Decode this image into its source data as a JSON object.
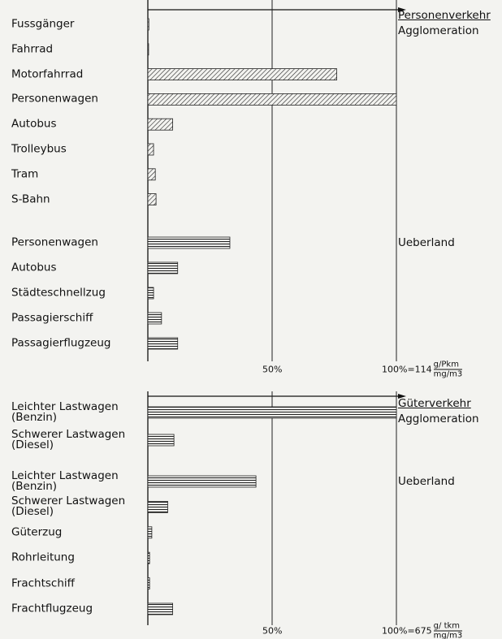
{
  "chart_data": [
    {
      "type": "bar",
      "orientation": "horizontal",
      "title": "Personenverkehr",
      "groups": [
        {
          "label": "Agglomeration",
          "categories": [
            "Fussgänger",
            "Fahrrad",
            "Motorfahrrad",
            "Personenwagen",
            "Autobus",
            "Trolleybus",
            "Tram",
            "S-Bahn"
          ],
          "values": [
            0.4,
            0.3,
            76,
            100,
            10,
            2.3,
            3,
            3.3
          ]
        },
        {
          "label": "Ueberland",
          "categories": [
            "Personenwagen",
            "Autobus",
            "Städteschnellzug",
            "Passagierschiff",
            "Passagierflugzeug"
          ],
          "values": [
            33,
            12,
            2.3,
            5.5,
            12
          ]
        }
      ],
      "xlim": [
        0,
        100
      ],
      "xticks": [
        {
          "value": 50,
          "label": "50%"
        },
        {
          "value": 100,
          "label": "100%=114"
        }
      ],
      "unit_numerator": "g/Pkm",
      "unit_denominator": "mg/m3"
    },
    {
      "type": "bar",
      "orientation": "horizontal",
      "title": "Güterverkehr",
      "groups": [
        {
          "label": "Agglomeration",
          "categories": [
            "Leichter Lastwagen\n(Benzin)",
            "Schwerer Lastwagen\n(Diesel)"
          ],
          "values": [
            100,
            10.5
          ]
        },
        {
          "label": "Ueberland",
          "categories": [
            "Leichter Lastwagen\n(Benzin)",
            "Schwerer Lastwagen\n(Diesel)",
            "Güterzug",
            "Rohrleitung",
            "Frachtschiff",
            "Frachtflugzeug"
          ],
          "values": [
            43.5,
            8,
            1.6,
            0.7,
            0.7,
            10
          ]
        }
      ],
      "xlim": [
        0,
        100
      ],
      "xticks": [
        {
          "value": 50,
          "label": "50%"
        },
        {
          "value": 100,
          "label": "100%=675"
        }
      ],
      "unit_numerator": "g/ tkm",
      "unit_denominator": "mg/m3"
    }
  ]
}
